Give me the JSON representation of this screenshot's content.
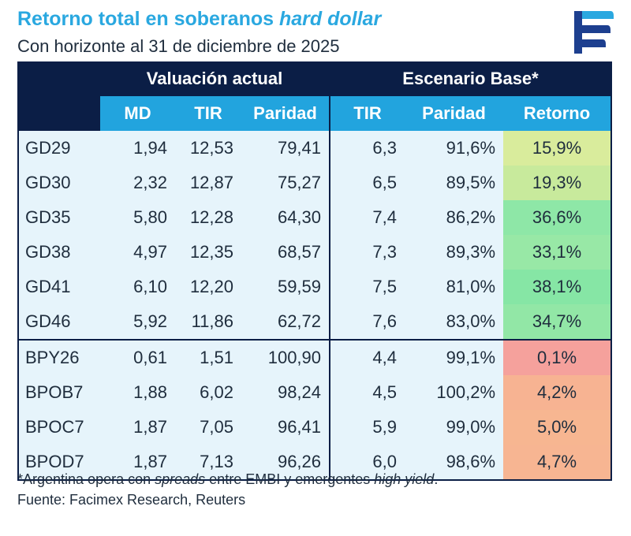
{
  "header": {
    "title_main": "Retorno total en soberanos ",
    "title_italic": "hard dollar",
    "subtitle": "Con horizonte al 31 de diciembre de 2025"
  },
  "logo": {
    "icon": "facimex-logo-icon",
    "colors": [
      "#1d3f8f",
      "#2aa8e0"
    ]
  },
  "table": {
    "group_headers": {
      "left": "Valuación actual",
      "right": "Escenario Base*"
    },
    "columns": [
      "MD",
      "TIR",
      "Paridad",
      "TIR",
      "Paridad",
      "Retorno"
    ],
    "rows": [
      {
        "bond": "GD29",
        "md": "1,94",
        "tir": "12,53",
        "paridad": "79,41",
        "tir_base": "6,3",
        "paridad_base": "91,6%",
        "retorno": "15,9%",
        "color": "#d9ec9c"
      },
      {
        "bond": "GD30",
        "md": "2,32",
        "tir": "12,87",
        "paridad": "75,27",
        "tir_base": "6,5",
        "paridad_base": "89,5%",
        "retorno": "19,3%",
        "color": "#c8ea9c"
      },
      {
        "bond": "GD35",
        "md": "5,80",
        "tir": "12,28",
        "paridad": "64,30",
        "tir_base": "7,4",
        "paridad_base": "86,2%",
        "retorno": "36,6%",
        "color": "#8ee7a7"
      },
      {
        "bond": "GD38",
        "md": "4,97",
        "tir": "12,35",
        "paridad": "68,57",
        "tir_base": "7,3",
        "paridad_base": "89,3%",
        "retorno": "33,1%",
        "color": "#98e8a6"
      },
      {
        "bond": "GD41",
        "md": "6,10",
        "tir": "12,20",
        "paridad": "59,59",
        "tir_base": "7,5",
        "paridad_base": "81,0%",
        "retorno": "38,1%",
        "color": "#86e6a5"
      },
      {
        "bond": "GD46",
        "md": "5,92",
        "tir": "11,86",
        "paridad": "62,72",
        "tir_base": "7,6",
        "paridad_base": "83,0%",
        "retorno": "34,7%",
        "color": "#92e7a6"
      },
      {
        "bond": "BPY26",
        "md": "0,61",
        "tir": "1,51",
        "paridad": "100,90",
        "tir_base": "4,4",
        "paridad_base": "99,1%",
        "retorno": "0,1%",
        "color": "#f5a19c"
      },
      {
        "bond": "BPOB7",
        "md": "1,88",
        "tir": "6,02",
        "paridad": "98,24",
        "tir_base": "4,5",
        "paridad_base": "100,2%",
        "retorno": "4,2%",
        "color": "#f7b392"
      },
      {
        "bond": "BPOC7",
        "md": "1,87",
        "tir": "7,05",
        "paridad": "96,41",
        "tir_base": "5,9",
        "paridad_base": "99,0%",
        "retorno": "5,0%",
        "color": "#f7b691"
      },
      {
        "bond": "BPOD7",
        "md": "1,87",
        "tir": "7,13",
        "paridad": "96,26",
        "tir_base": "6,0",
        "paridad_base": "98,6%",
        "retorno": "4,7%",
        "color": "#f7b592"
      }
    ]
  },
  "footnote": {
    "parts": [
      "*Argentina opera con ",
      "spreads",
      " entre EMBI y emergentes ",
      "high yield",
      "."
    ],
    "source": "Fuente: Facimex Research, Reuters"
  }
}
